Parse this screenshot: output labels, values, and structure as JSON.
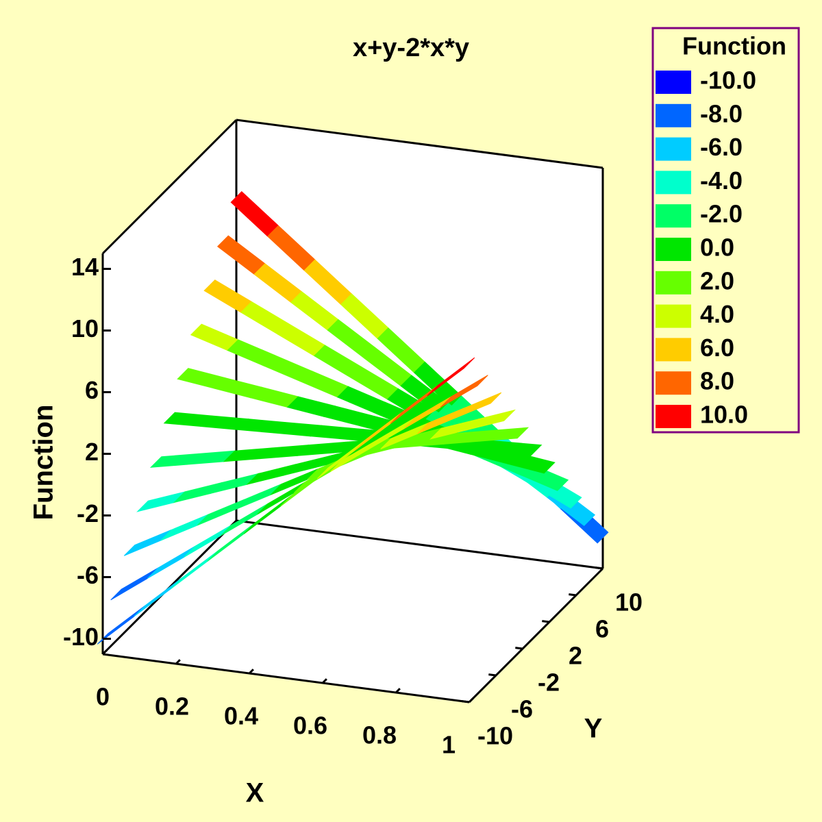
{
  "chart_data": {
    "type": "surface",
    "title": "x+y-2*x*y",
    "xlabel": "X",
    "ylabel": "Y",
    "zlabel": "Function",
    "legend_title": "Function",
    "x": [
      0,
      0.1,
      0.2,
      0.3,
      0.4,
      0.5,
      0.6,
      0.7,
      0.8,
      0.9,
      1
    ],
    "y": [
      -10,
      -8,
      -6,
      -4,
      -2,
      0,
      2,
      4,
      6,
      8,
      10
    ],
    "z": [
      [
        -10,
        -7.9,
        -5.8,
        -3.7,
        -1.6,
        0.5,
        2.6,
        4.7,
        6.8,
        8.9,
        11
      ],
      [
        -8,
        -6.3,
        -4.6,
        -2.9,
        -1.2,
        0.5,
        2.2,
        3.9,
        5.6,
        7.3,
        9
      ],
      [
        -6,
        -4.7,
        -3.4,
        -2.1,
        -0.8,
        0.5,
        1.8,
        3.1,
        4.4,
        5.7,
        7
      ],
      [
        -4,
        -3.1,
        -2.2,
        -1.3,
        -0.4,
        0.5,
        1.4,
        2.3,
        3.2,
        4.1,
        5
      ],
      [
        -2,
        -1.5,
        -1,
        -0.5,
        0,
        0.5,
        1,
        1.5,
        2,
        2.5,
        3
      ],
      [
        0,
        0.1,
        0.2,
        0.3,
        0.4,
        0.5,
        0.6,
        0.7,
        0.8,
        0.9,
        1
      ],
      [
        2,
        1.7,
        1.4,
        1.1,
        0.8,
        0.5,
        0.2,
        -0.1,
        -0.4,
        -0.7,
        -1
      ],
      [
        4,
        3.3,
        2.6,
        1.9,
        1.2,
        0.5,
        -0.2,
        -0.9,
        -1.6,
        -2.3,
        -3
      ],
      [
        6,
        4.9,
        3.8,
        2.7,
        1.6,
        0.5,
        -0.6,
        -1.7,
        -2.8,
        -3.9,
        -5
      ],
      [
        8,
        6.5,
        5,
        3.5,
        2,
        0.5,
        -1,
        -2.5,
        -4,
        -5.5,
        -7
      ],
      [
        10,
        8.1,
        6.2,
        4.3,
        2.4,
        0.5,
        -1.4,
        -3.3,
        -5.2,
        -7.1,
        -9
      ]
    ],
    "xlim": [
      0,
      1
    ],
    "xticks": [
      0,
      0.2,
      0.4,
      0.6,
      0.8,
      1
    ],
    "ylim": [
      -10,
      10
    ],
    "yticks": [
      -10,
      -6,
      -2,
      2,
      6,
      10
    ],
    "zlim": [
      -11,
      15
    ],
    "zticks": [
      -10,
      -6,
      -2,
      2,
      6,
      10,
      14
    ],
    "levels": [
      {
        "value": -10,
        "label": "-10.0"
      },
      {
        "value": -8,
        "label": "-8.0"
      },
      {
        "value": -6,
        "label": "-6.0"
      },
      {
        "value": -4,
        "label": "-4.0"
      },
      {
        "value": -2,
        "label": "-2.0"
      },
      {
        "value": 0,
        "label": "0.0"
      },
      {
        "value": 2,
        "label": "2.0"
      },
      {
        "value": 4,
        "label": "4.0"
      },
      {
        "value": 6,
        "label": "6.0"
      },
      {
        "value": 8,
        "label": "8.0"
      },
      {
        "value": 10,
        "label": "10.0"
      }
    ],
    "colors": [
      "#0000ff",
      "#0066ff",
      "#00ccff",
      "#00ffcc",
      "#00ff66",
      "#00e600",
      "#66ff00",
      "#ccff00",
      "#ffcc00",
      "#ff6600",
      "#ff0000"
    ]
  }
}
